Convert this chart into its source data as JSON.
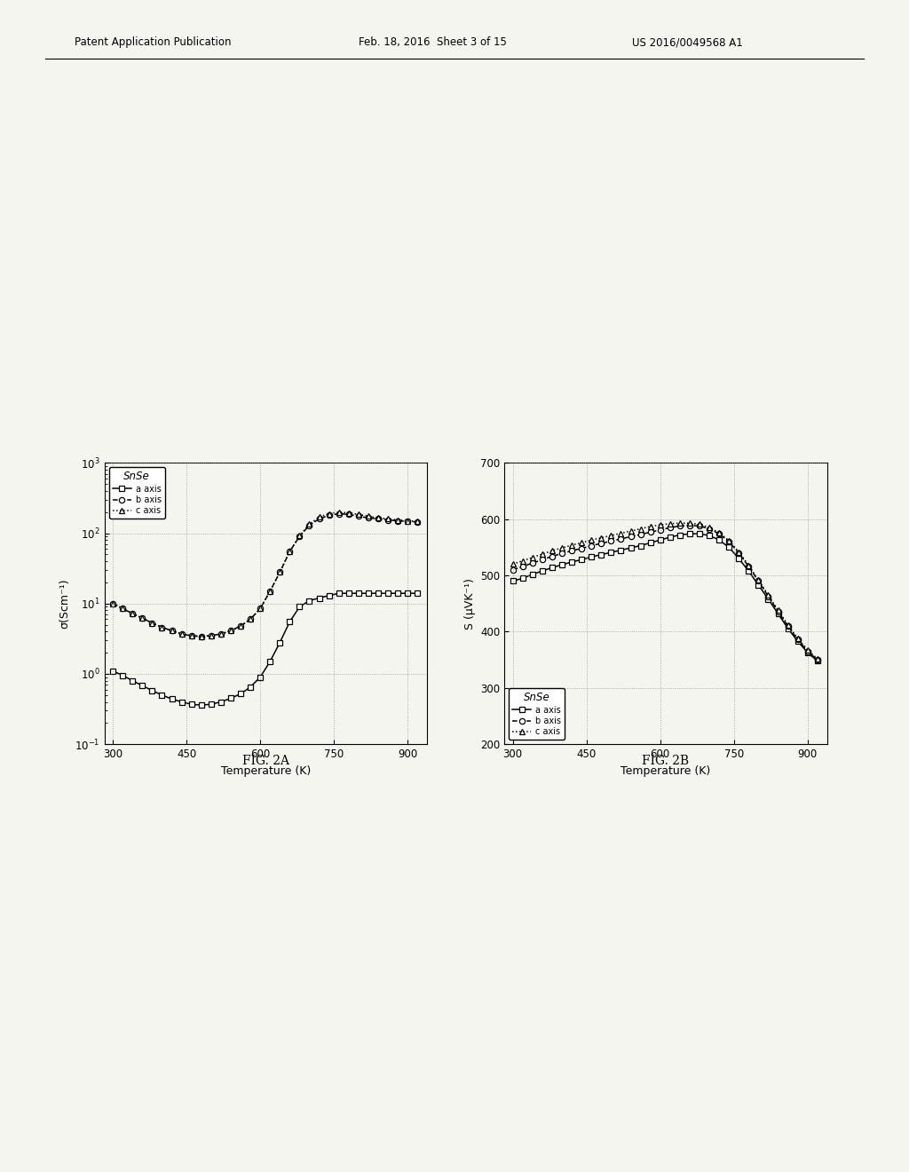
{
  "header_left": "Patent Application Publication",
  "header_date": "Feb. 18, 2016  Sheet 3 of 15",
  "header_right": "US 2016/0049568 A1",
  "fig2a_title": "FIG. 2A",
  "fig2b_title": "FIG. 2B",
  "legend_title": "SnSe",
  "legend_entries": [
    "a axis",
    "b axis",
    "c axis"
  ],
  "fig2a_xlabel": "Temperature (K)",
  "fig2a_ylabel": "σ(Scm⁻¹)",
  "fig2b_xlabel": "Temperature (K)",
  "fig2b_ylabel": "S (μVK⁻¹)",
  "fig2a_xticks": [
    300,
    450,
    600,
    750,
    900
  ],
  "fig2b_xticks": [
    300,
    450,
    600,
    750,
    900
  ],
  "fig2b_ylim": [
    200,
    700
  ],
  "fig2b_yticks": [
    200,
    300,
    400,
    500,
    600,
    700
  ],
  "temp": [
    300,
    320,
    340,
    360,
    380,
    400,
    420,
    440,
    460,
    480,
    500,
    520,
    540,
    560,
    580,
    600,
    620,
    640,
    660,
    680,
    700,
    720,
    740,
    760,
    780,
    800,
    820,
    840,
    860,
    880,
    900,
    920
  ],
  "sigma_a": [
    1.1,
    0.95,
    0.8,
    0.68,
    0.58,
    0.5,
    0.44,
    0.4,
    0.37,
    0.36,
    0.37,
    0.4,
    0.45,
    0.52,
    0.65,
    0.9,
    1.5,
    2.8,
    5.5,
    9.0,
    11,
    12,
    13,
    14,
    14,
    14,
    14,
    14,
    14,
    14,
    14,
    14
  ],
  "sigma_b": [
    10,
    8.5,
    7.2,
    6.2,
    5.3,
    4.6,
    4.1,
    3.7,
    3.5,
    3.4,
    3.5,
    3.7,
    4.1,
    4.8,
    6.0,
    8.5,
    15,
    28,
    55,
    90,
    130,
    160,
    180,
    190,
    185,
    175,
    165,
    160,
    155,
    150,
    148,
    145
  ],
  "sigma_c": [
    10,
    8.5,
    7.2,
    6.2,
    5.3,
    4.6,
    4.1,
    3.7,
    3.5,
    3.4,
    3.5,
    3.7,
    4.1,
    4.8,
    6.0,
    8.5,
    15,
    28,
    55,
    92,
    135,
    170,
    190,
    200,
    195,
    185,
    175,
    165,
    160,
    155,
    150,
    148
  ],
  "seebeck_a": [
    490,
    495,
    502,
    508,
    514,
    519,
    524,
    528,
    533,
    537,
    541,
    545,
    549,
    553,
    558,
    563,
    568,
    572,
    574,
    574,
    571,
    563,
    550,
    530,
    508,
    483,
    458,
    432,
    406,
    383,
    363,
    348
  ],
  "seebeck_b": [
    510,
    516,
    522,
    528,
    534,
    539,
    544,
    548,
    553,
    557,
    561,
    565,
    569,
    573,
    577,
    581,
    585,
    588,
    589,
    588,
    583,
    574,
    560,
    540,
    516,
    490,
    463,
    436,
    410,
    386,
    365,
    350
  ],
  "seebeck_c": [
    520,
    526,
    532,
    538,
    544,
    549,
    554,
    558,
    563,
    567,
    571,
    575,
    579,
    583,
    587,
    590,
    592,
    593,
    593,
    591,
    585,
    576,
    562,
    542,
    518,
    492,
    465,
    438,
    412,
    388,
    368,
    352
  ],
  "background": "#f5f5f0",
  "line_color": "#000000"
}
